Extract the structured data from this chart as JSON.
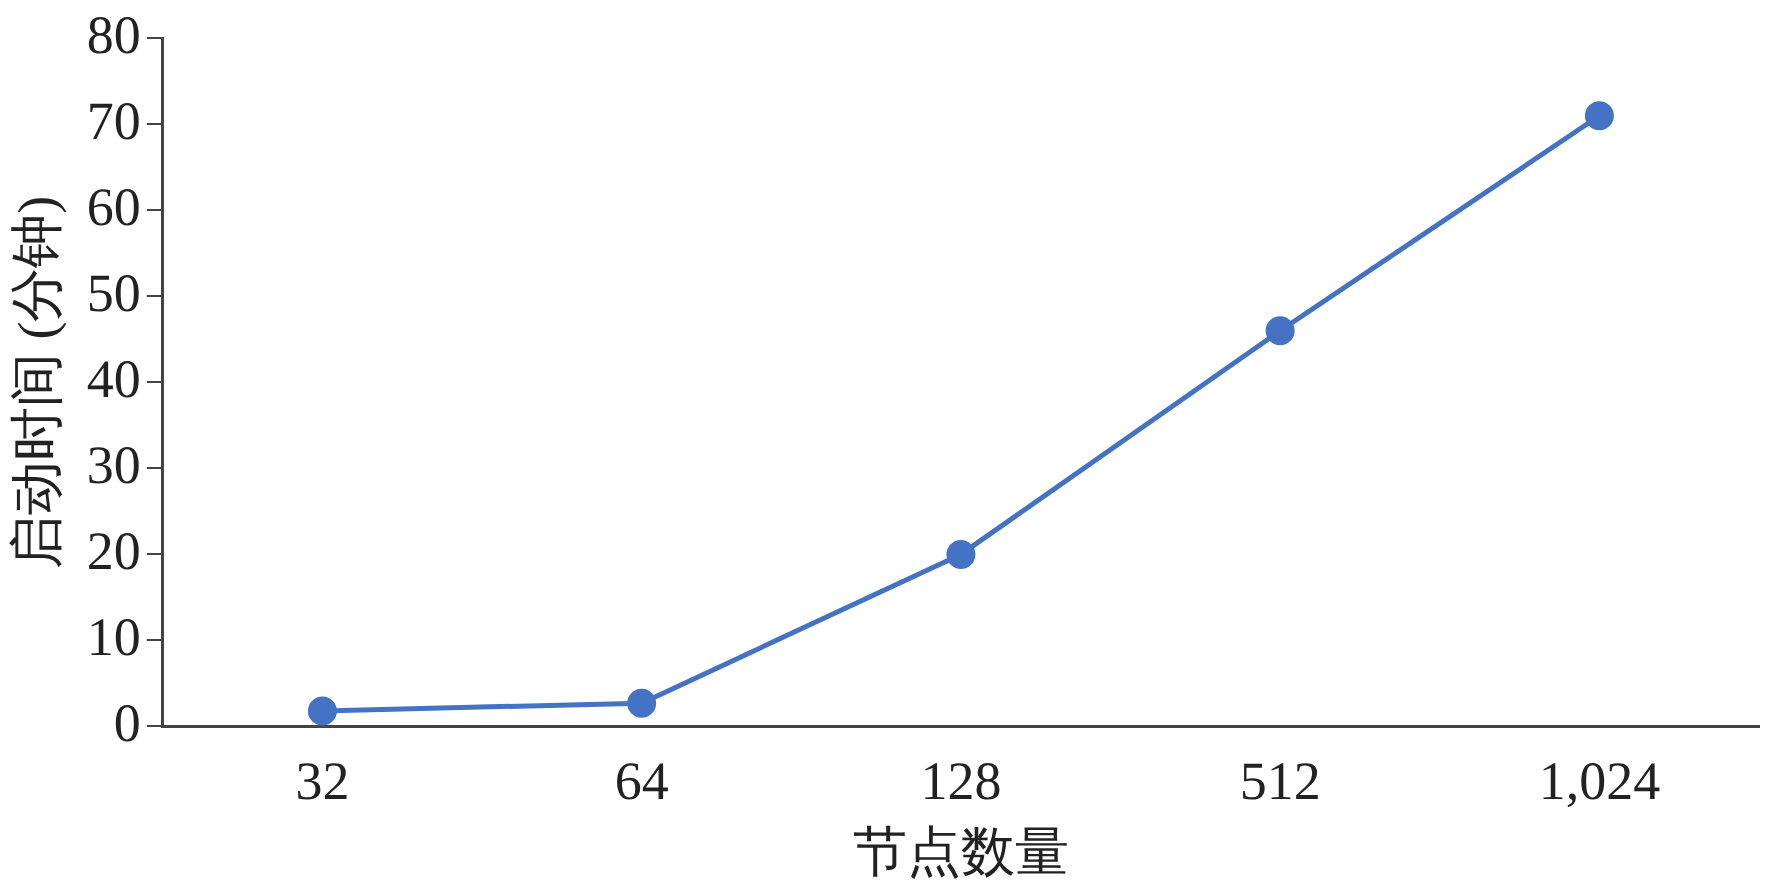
{
  "chart_data": {
    "type": "line",
    "xlabel": "节点数量",
    "ylabel": "启动时间 (分钟)",
    "categories": [
      "32",
      "64",
      "128",
      "512",
      "1,024"
    ],
    "series": [
      {
        "color": "#4472c4",
        "values": [
          1.8,
          2.7,
          20,
          46,
          71
        ]
      }
    ],
    "ylim": [
      0,
      80
    ],
    "yticks": [
      0,
      10,
      20,
      30,
      40,
      50,
      60,
      70,
      80
    ],
    "grid": false,
    "legend": false,
    "marker": "circle",
    "line_style": "solid"
  }
}
